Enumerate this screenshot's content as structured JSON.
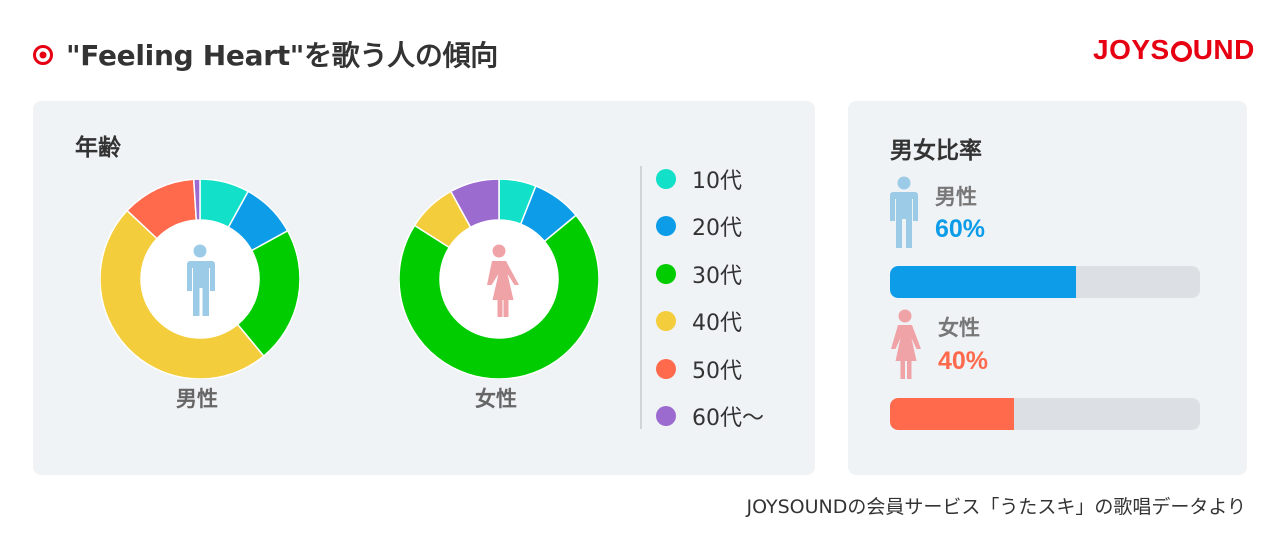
{
  "header": {
    "title": "\"Feeling Heart\"を歌う人の傾向",
    "brand_pre": "JOYS",
    "brand_post": "UND"
  },
  "age_panel": {
    "title": "年齢",
    "male_label": "男性",
    "female_label": "女性"
  },
  "ratio_panel": {
    "title": "男女比率",
    "male_label": "男性",
    "male_pct": "60%",
    "female_label": "女性",
    "female_pct": "40%"
  },
  "footer": {
    "note": "JOYSOUNDの会員サービス「うたスキ」の歌唱データより"
  },
  "colors": {
    "10代": "#12e0c8",
    "20代": "#0d9de8",
    "30代": "#00cc00",
    "40代": "#f4cd3c",
    "50代": "#ff6a4d",
    "60代〜": "#9b6bcf",
    "male_icon": "#9ccbe8",
    "female_icon": "#f0a3a6",
    "male_bar": "#0d9de8",
    "female_bar": "#ff6a4d",
    "brand": "#e60012"
  },
  "chart_data": [
    {
      "type": "pie",
      "name": "男性",
      "categories": [
        "10代",
        "20代",
        "30代",
        "40代",
        "50代",
        "60代〜"
      ],
      "values": [
        8,
        9,
        22,
        48,
        12,
        1
      ]
    },
    {
      "type": "pie",
      "name": "女性",
      "categories": [
        "10代",
        "20代",
        "30代",
        "40代",
        "50代",
        "60代〜"
      ],
      "values": [
        6,
        8,
        70,
        8,
        0,
        8
      ]
    },
    {
      "type": "bar",
      "categories": [
        "男性",
        "女性"
      ],
      "values": [
        60,
        40
      ]
    }
  ],
  "legend": [
    {
      "label": "10代",
      "color": "#12e0c8"
    },
    {
      "label": "20代",
      "color": "#0d9de8"
    },
    {
      "label": "30代",
      "color": "#00cc00"
    },
    {
      "label": "40代",
      "color": "#f4cd3c"
    },
    {
      "label": "50代",
      "color": "#ff6a4d"
    },
    {
      "label": "60代〜",
      "color": "#9b6bcf"
    }
  ]
}
